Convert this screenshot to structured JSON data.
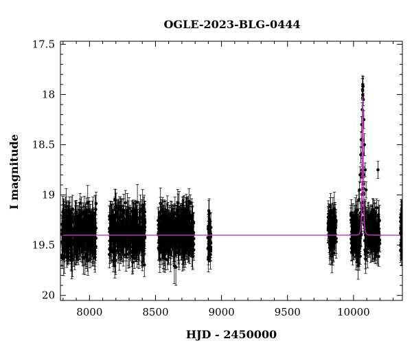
{
  "chart_data": {
    "type": "scatter",
    "title": "OGLE-2023-BLG-0444",
    "xlabel": "HJD - 2450000",
    "ylabel": "I magnitude",
    "xlim": [
      7780,
      10370
    ],
    "ylim": [
      20.05,
      17.47
    ],
    "y_inverted": true,
    "grid": false,
    "xticks": [
      8000,
      8500,
      9000,
      9500,
      10000
    ],
    "xtick_labels": [
      "8000",
      "8500",
      "9000",
      "9500",
      "10000"
    ],
    "yticks": [
      17.5,
      18,
      18.5,
      19,
      19.5,
      20
    ],
    "ytick_labels": [
      "17.5",
      "18",
      "18.5",
      "19",
      "19.5",
      "20"
    ],
    "colors": {
      "points": "#000000",
      "model": "#cc33cc"
    },
    "series": [
      {
        "kind": "observations",
        "seasons": [
          {
            "x_range": [
              7790,
              8050
            ],
            "mean_mag": 19.38,
            "scatter": 0.16,
            "errorbar": 0.14
          },
          {
            "x_range": [
              8150,
              8420
            ],
            "mean_mag": 19.38,
            "scatter": 0.16,
            "errorbar": 0.14
          },
          {
            "x_range": [
              8520,
              8790
            ],
            "mean_mag": 19.38,
            "scatter": 0.16,
            "errorbar": 0.14
          },
          {
            "x_range": [
              8895,
              8920
            ],
            "mean_mag": 19.42,
            "scatter": 0.14,
            "errorbar": 0.12
          },
          {
            "x_range": [
              9805,
              9870
            ],
            "mean_mag": 19.35,
            "scatter": 0.15,
            "errorbar": 0.13
          },
          {
            "x_range": [
              9980,
              10200
            ],
            "mean_mag": 19.38,
            "scatter": 0.14,
            "errorbar": 0.12
          },
          {
            "x_range": [
              10355,
              10375
            ],
            "mean_mag": 19.35,
            "scatter": 0.15,
            "errorbar": 0.12
          }
        ],
        "peak_points": [
          {
            "x": 10070,
            "y": 17.9
          },
          {
            "x": 10072,
            "y": 17.92
          },
          {
            "x": 10068,
            "y": 17.95
          },
          {
            "x": 10074,
            "y": 18.05
          },
          {
            "x": 10066,
            "y": 18.15
          },
          {
            "x": 10062,
            "y": 18.3
          },
          {
            "x": 10078,
            "y": 18.25
          },
          {
            "x": 10058,
            "y": 18.45
          },
          {
            "x": 10082,
            "y": 18.5
          },
          {
            "x": 10055,
            "y": 18.6
          },
          {
            "x": 10088,
            "y": 18.75
          },
          {
            "x": 10050,
            "y": 18.8
          },
          {
            "x": 10095,
            "y": 18.95
          },
          {
            "x": 10045,
            "y": 18.95
          },
          {
            "x": 10040,
            "y": 19.05
          },
          {
            "x": 10185,
            "y": 18.75
          },
          {
            "x": 10030,
            "y": 19.15
          },
          {
            "x": 10000,
            "y": 19.5
          },
          {
            "x": 10003,
            "y": 19.55
          },
          {
            "x": 10370,
            "y": 19.58
          },
          {
            "x": 10365,
            "y": 19.25
          },
          {
            "x": 10375,
            "y": 19.25
          }
        ]
      },
      {
        "kind": "model",
        "baseline": 19.4,
        "t0": 10070,
        "peak_mag": 18.02,
        "tE": 8
      }
    ]
  }
}
